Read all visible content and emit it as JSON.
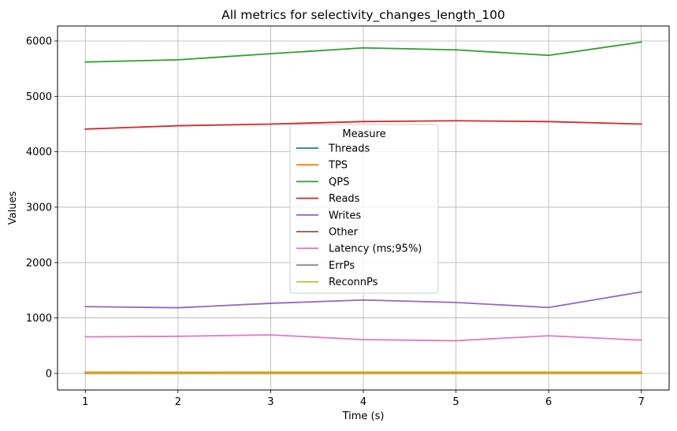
{
  "chart_data": {
    "type": "line",
    "title": "All metrics for selectivity_changes_length_100",
    "xlabel": "Time (s)",
    "ylabel": "Values",
    "x": [
      1,
      2,
      3,
      4,
      5,
      6,
      7
    ],
    "xlim": [
      0.7,
      7.3
    ],
    "ylim": [
      -300,
      6270
    ],
    "xticks": [
      1,
      2,
      3,
      4,
      5,
      6,
      7
    ],
    "yticks": [
      0,
      1000,
      2000,
      3000,
      4000,
      5000,
      6000
    ],
    "grid": true,
    "legend": {
      "title": "Measure",
      "placement": "center"
    },
    "series": [
      {
        "name": "Threads",
        "color": "#1f77b4",
        "values": [
          16,
          16,
          16,
          16,
          16,
          16,
          16
        ]
      },
      {
        "name": "TPS",
        "color": "#ff7f0e",
        "values": [
          21,
          20,
          22,
          22,
          22,
          21,
          21
        ]
      },
      {
        "name": "QPS",
        "color": "#2ca02c",
        "values": [
          5620,
          5660,
          5770,
          5875,
          5840,
          5740,
          5980
        ]
      },
      {
        "name": "Reads",
        "color": "#d62728",
        "values": [
          4410,
          4470,
          4500,
          4545,
          4560,
          4545,
          4500
        ]
      },
      {
        "name": "Writes",
        "color": "#9467bd",
        "values": [
          1205,
          1185,
          1265,
          1325,
          1280,
          1190,
          1470
        ]
      },
      {
        "name": "Other",
        "color": "#8c564b",
        "values": [
          0,
          0,
          0,
          0,
          0,
          0,
          0
        ]
      },
      {
        "name": "Latency (ms;95%)",
        "color": "#e377c2",
        "values": [
          660,
          670,
          695,
          610,
          590,
          680,
          600
        ]
      },
      {
        "name": "ErrPs",
        "color": "#7f7f7f",
        "values": [
          0,
          0,
          0,
          0,
          0,
          0,
          0
        ]
      },
      {
        "name": "ReconnPs",
        "color": "#bcbd22",
        "values": [
          0,
          0,
          0,
          0,
          0,
          0,
          0
        ]
      }
    ]
  }
}
